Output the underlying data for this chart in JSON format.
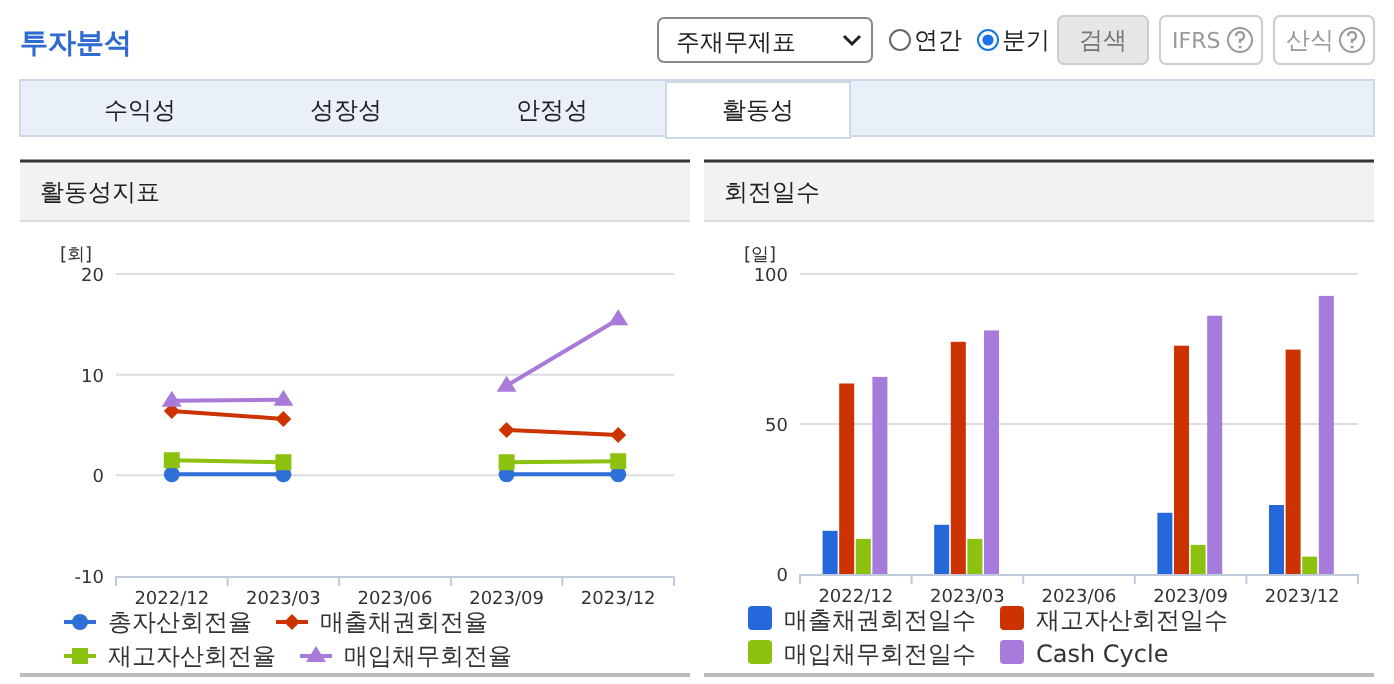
{
  "chart_data": [
    {
      "type": "other",
      "title": "투자분석",
      "annotations": [
        "주재무제표",
        "연간",
        "분기",
        "검색",
        "IFRS",
        "산식",
        "수익성",
        "성장성",
        "안정성",
        "활동성"
      ]
    },
    {
      "type": "line",
      "title": "활동성지표",
      "ylabel": "[회]",
      "categories": [
        "2022/12",
        "2023/03",
        "2023/06",
        "2023/09",
        "2023/12"
      ],
      "ylim": [
        -10,
        20
      ],
      "yticks": [
        -10,
        0,
        10,
        20
      ],
      "grid": "y",
      "legend": "bottom",
      "series": [
        {
          "name": "총자산회전율",
          "color": "#2e6fd8",
          "marker": "circle",
          "values": [
            0.1,
            0.1,
            null,
            0.1,
            0.1
          ]
        },
        {
          "name": "매출채권회전율",
          "color": "#cc3300",
          "marker": "diamond",
          "values": [
            6.4,
            5.6,
            null,
            4.5,
            4.0
          ]
        },
        {
          "name": "재고자산회전율",
          "color": "#8cc10f",
          "marker": "square",
          "values": [
            1.5,
            1.3,
            null,
            1.3,
            1.4
          ]
        },
        {
          "name": "매입채무회전율",
          "color": "#a97ad8",
          "marker": "triangle",
          "values": [
            7.4,
            7.5,
            null,
            8.9,
            15.5
          ]
        }
      ]
    },
    {
      "type": "bar",
      "title": "회전일수",
      "ylabel": "[일]",
      "categories": [
        "2022/12",
        "2023/03",
        "2023/06",
        "2023/09",
        "2023/12"
      ],
      "ylim": [
        0,
        100
      ],
      "yticks": [
        0,
        50,
        100
      ],
      "grid": "y",
      "legend": "bottom",
      "series": [
        {
          "name": "매출채권회전일수",
          "color": "#2468dc",
          "values": [
            14.4,
            16.4,
            null,
            20.4,
            23.0
          ]
        },
        {
          "name": "재고자산회전일수",
          "color": "#cc3300",
          "values": [
            63.5,
            77.4,
            null,
            76.1,
            74.8
          ]
        },
        {
          "name": "매입채무회전일수",
          "color": "#8cc10f",
          "values": [
            11.7,
            11.7,
            null,
            9.7,
            5.8
          ]
        },
        {
          "name": "Cash Cycle",
          "color": "#a67bdb",
          "values": [
            65.7,
            81.2,
            null,
            86.1,
            92.7
          ]
        }
      ]
    }
  ]
}
